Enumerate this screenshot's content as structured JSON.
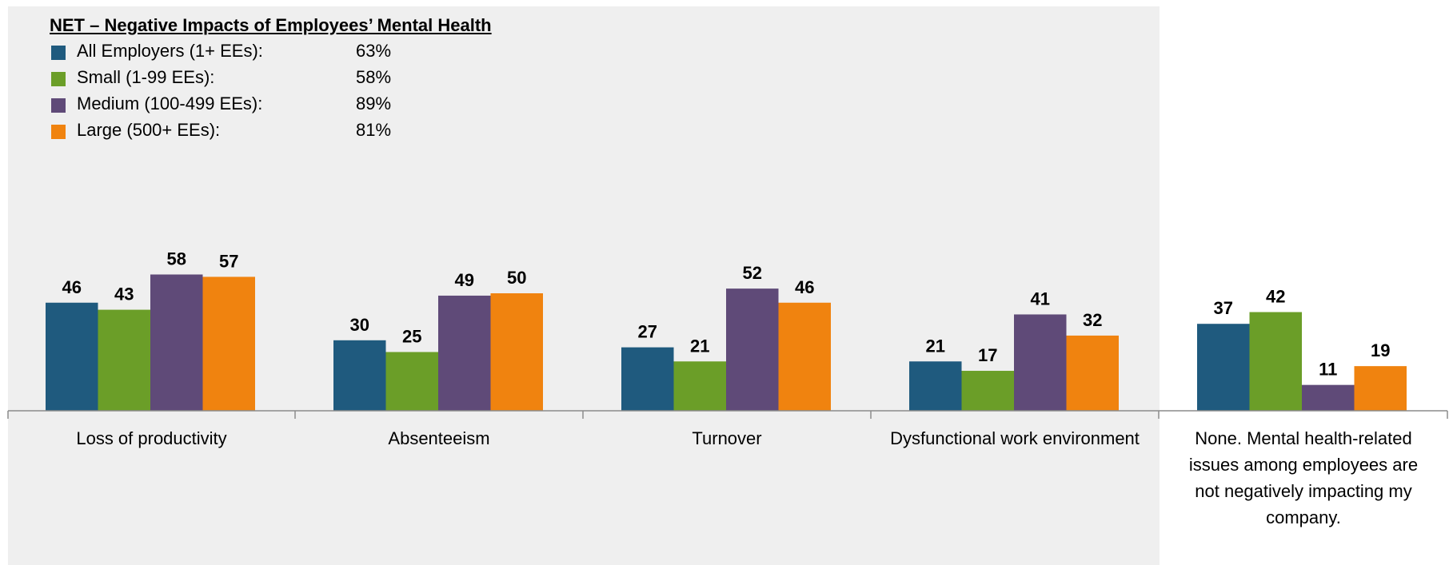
{
  "legend": {
    "title": "NET – Negative Impacts of Employees’ Mental Health",
    "items": [
      {
        "label": "All Employers (1+ EEs):",
        "value": "63%",
        "color": "#1f5a7e"
      },
      {
        "label": "Small (1-99 EEs):",
        "value": "58%",
        "color": "#6b9e28"
      },
      {
        "label": "Medium (100-499 EEs):",
        "value": "89%",
        "color": "#5f4a78"
      },
      {
        "label": "Large (500+ EEs):",
        "value": "81%",
        "color": "#f0830f"
      }
    ]
  },
  "chart_data": {
    "type": "bar",
    "categories": [
      "Loss of productivity",
      "Absenteeism",
      "Turnover",
      "Dysfunctional work environment",
      "None. Mental health-related issues among employees are not negatively impacting my company."
    ],
    "series": [
      {
        "name": "All Employers (1+ EEs)",
        "color": "#1f5a7e",
        "values": [
          46,
          30,
          27,
          21,
          37
        ]
      },
      {
        "name": "Small (1-99 EEs)",
        "color": "#6b9e28",
        "values": [
          43,
          25,
          21,
          17,
          42
        ]
      },
      {
        "name": "Medium (100-499 EEs)",
        "color": "#5f4a78",
        "values": [
          58,
          49,
          52,
          41,
          11
        ]
      },
      {
        "name": "Large (500+ EEs)",
        "color": "#f0830f",
        "values": [
          57,
          50,
          46,
          32,
          19
        ]
      }
    ],
    "ylim": [
      0,
      100
    ],
    "grid": false,
    "legend_position": "top-left"
  }
}
